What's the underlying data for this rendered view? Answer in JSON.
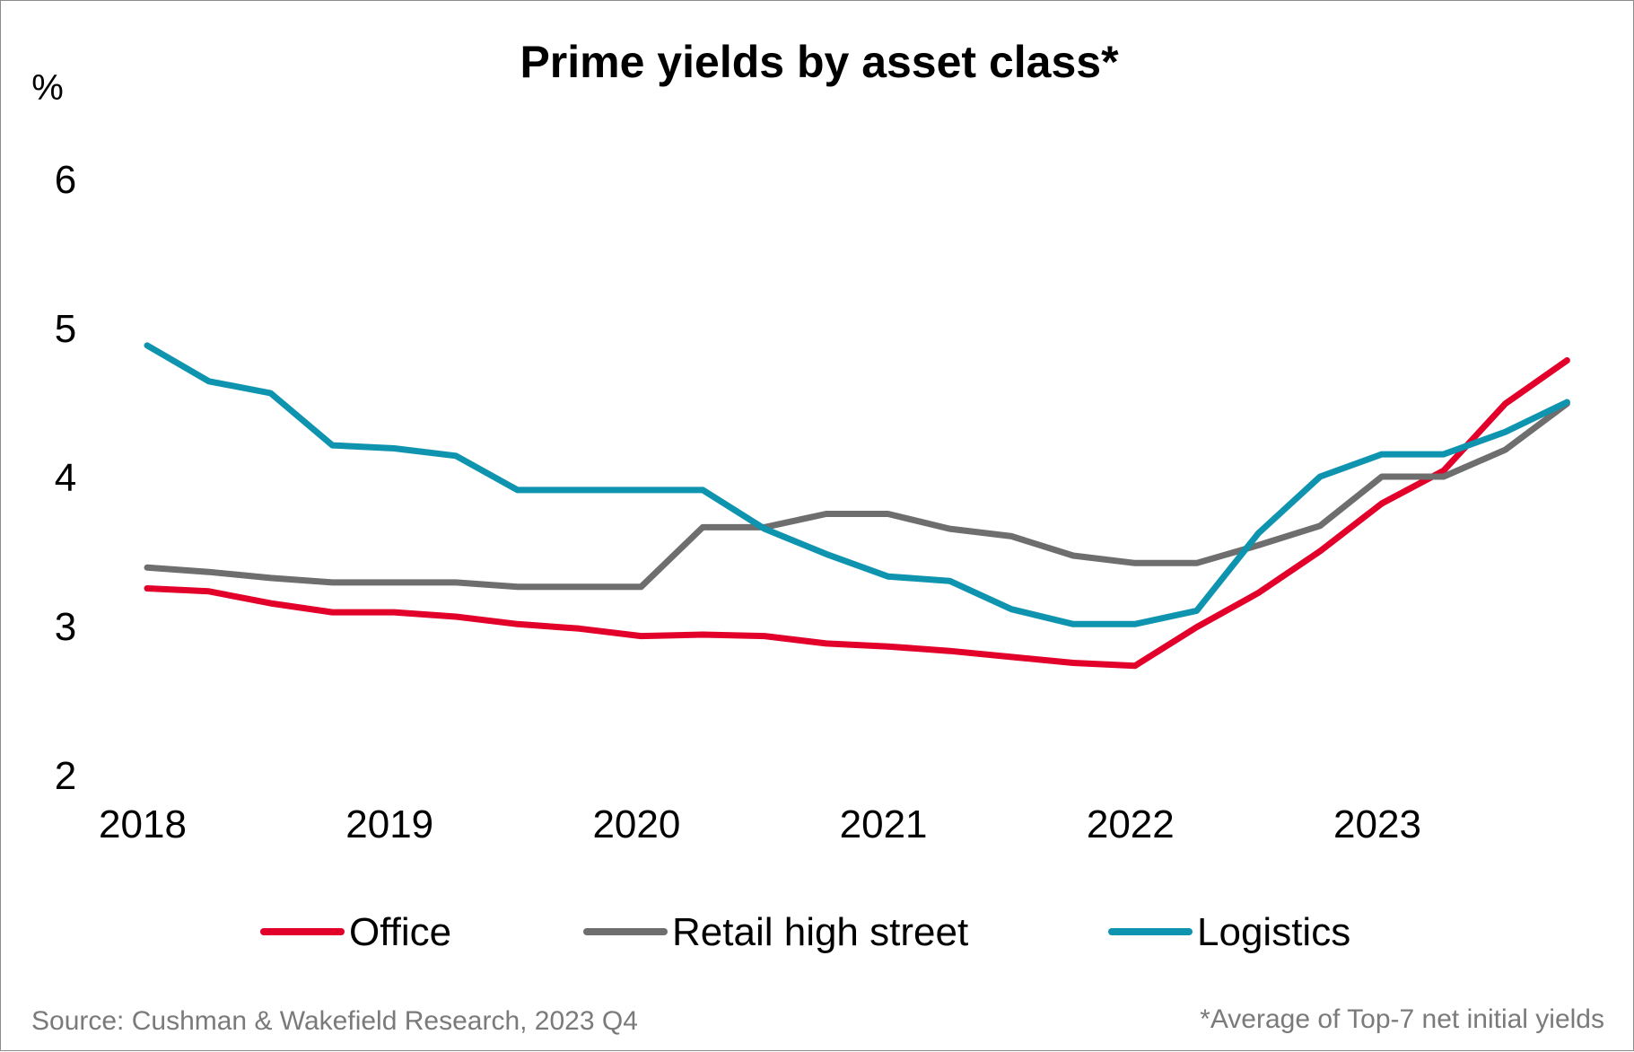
{
  "chart_data": {
    "type": "line",
    "title": "Prime yields by asset class*",
    "ylabel": "%",
    "xlabel": "",
    "ylim": [
      2,
      6
    ],
    "yticks": [
      2,
      3,
      4,
      5,
      6
    ],
    "xticks": [
      {
        "label": "2018",
        "index": 0
      },
      {
        "label": "2019",
        "index": 4
      },
      {
        "label": "2020",
        "index": 8
      },
      {
        "label": "2021",
        "index": 12
      },
      {
        "label": "2022",
        "index": 16
      },
      {
        "label": "2023",
        "index": 20
      }
    ],
    "x": [
      "2018 Q1",
      "2018 Q2",
      "2018 Q3",
      "2018 Q4",
      "2019 Q1",
      "2019 Q2",
      "2019 Q3",
      "2019 Q4",
      "2020 Q1",
      "2020 Q2",
      "2020 Q3",
      "2020 Q4",
      "2021 Q1",
      "2021 Q2",
      "2021 Q3",
      "2021 Q4",
      "2022 Q1",
      "2022 Q2",
      "2022 Q3",
      "2022 Q4",
      "2023 Q1",
      "2023 Q2",
      "2023 Q3",
      "2023 Q4"
    ],
    "series": [
      {
        "name": "Office",
        "color": "#e2002b",
        "values": [
          3.25,
          3.23,
          3.15,
          3.09,
          3.09,
          3.06,
          3.01,
          2.98,
          2.93,
          2.94,
          2.93,
          2.88,
          2.86,
          2.83,
          2.79,
          2.75,
          2.73,
          2.99,
          3.22,
          3.5,
          3.82,
          4.04,
          4.49,
          4.78
        ]
      },
      {
        "name": "Retail high street",
        "color": "#6e6e6e",
        "values": [
          3.39,
          3.36,
          3.32,
          3.29,
          3.29,
          3.29,
          3.26,
          3.26,
          3.26,
          3.66,
          3.66,
          3.75,
          3.75,
          3.65,
          3.6,
          3.47,
          3.42,
          3.42,
          3.54,
          3.67,
          4.0,
          4.0,
          4.18,
          4.49
        ]
      },
      {
        "name": "Logistics",
        "color": "#0f94b0",
        "values": [
          4.88,
          4.64,
          4.56,
          4.21,
          4.19,
          4.14,
          3.91,
          3.91,
          3.91,
          3.91,
          3.65,
          3.48,
          3.33,
          3.3,
          3.11,
          3.01,
          3.01,
          3.1,
          3.62,
          4.0,
          4.15,
          4.15,
          4.3,
          4.5
        ]
      }
    ],
    "legend": "bottom",
    "footnotes": {
      "source": "Source: Cushman & Wakefield Research, 2023 Q4",
      "note": "*Average of Top-7 net initial yields"
    }
  }
}
